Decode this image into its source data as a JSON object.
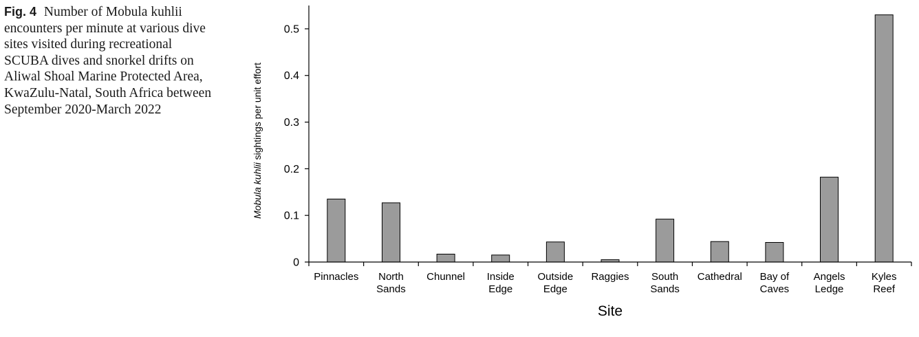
{
  "caption": {
    "label": "Fig. 4",
    "text": "Number of Mobula kuhlii encounters per minute at various dive sites visited during recreational SCUBA dives and snorkel drifts on Aliwal Shoal Marine Protected Area, KwaZulu-Natal, South Africa between September 2020-March 2022"
  },
  "chart_data": {
    "type": "bar",
    "categories": [
      [
        "Pinnacles"
      ],
      [
        "North",
        "Sands"
      ],
      [
        "Chunnel"
      ],
      [
        "Inside",
        "Edge"
      ],
      [
        "Outside",
        "Edge"
      ],
      [
        "Raggies"
      ],
      [
        "South",
        "Sands"
      ],
      [
        "Cathedral"
      ],
      [
        "Bay of",
        "Caves"
      ],
      [
        "Angels",
        "Ledge"
      ],
      [
        "Kyles",
        "Reef"
      ]
    ],
    "values": [
      0.135,
      0.127,
      0.017,
      0.015,
      0.043,
      0.005,
      0.092,
      0.044,
      0.042,
      0.182,
      0.53
    ],
    "ylabel_italic": "Mobula kuhlii",
    "ylabel_rest": " sightings per unit effort",
    "xlabel": "Site",
    "ylim": [
      0,
      0.55
    ],
    "yticks": [
      "0",
      "0.1",
      "0.2",
      "0.3",
      "0.4",
      "0.5"
    ],
    "bar_color": "#9b9b9b",
    "bar_stroke": "#000000",
    "grid": false,
    "legend": "none"
  }
}
